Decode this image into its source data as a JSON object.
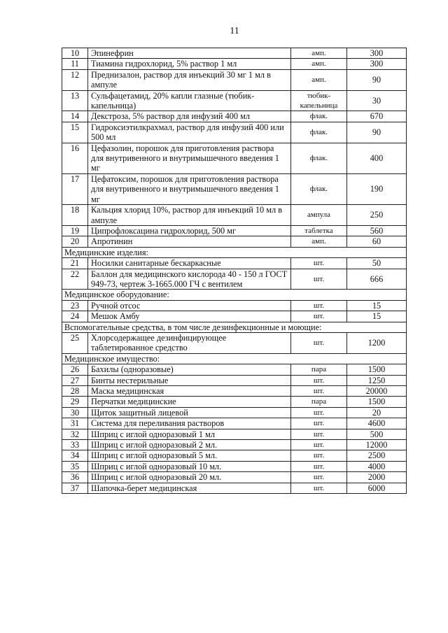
{
  "page_number": "11",
  "table": {
    "rows": [
      {
        "num": "10",
        "name": "Эпинефрин",
        "unit": "амп.",
        "qty": "300"
      },
      {
        "num": "11",
        "name": "Тиамина гидрохлорид, 5% раствор 1 мл",
        "unit": "амп.",
        "qty": "300"
      },
      {
        "num": "12",
        "name": "Преднизалон, раствор для инъекций 30 мг 1 мл в ампуле",
        "unit": "амп.",
        "qty": "90"
      },
      {
        "num": "13",
        "name": "Сульфацетамид, 20% капли глазные (тюбик-капельница)",
        "unit": "тюбик-капельница",
        "qty": "30"
      },
      {
        "num": "14",
        "name": "Декстроза, 5% раствор для инфузий 400 мл",
        "unit": "флак.",
        "qty": "670"
      },
      {
        "num": "15",
        "name": "Гидроксиэтилкрахмал, раствор для инфузий 400 или 500 мл",
        "unit": "флак.",
        "qty": "90"
      },
      {
        "num": "16",
        "name": "Цефазолин, порошок для приготовления раствора для внутривенного и внутримышечного введения 1 мг",
        "unit": "флак.",
        "qty": "400"
      },
      {
        "num": "17",
        "name": "Цефатоксим, порошок для приготовления раствора для внутривенного и внутримышечного введения 1 мг",
        "unit": "флак.",
        "qty": "190"
      },
      {
        "num": "18",
        "name": "Кальция хлорид 10%, раствор для инъекций 10 мл в ампуле",
        "unit": "ампула",
        "qty": "250"
      },
      {
        "num": "19",
        "name": "Ципрофлоксацина гидрохлорид, 500 мг",
        "unit": "таблетка",
        "qty": "560"
      },
      {
        "num": "20",
        "name": "Апротинин",
        "unit": "амп.",
        "qty": "60"
      },
      {
        "section": "Медицинские изделия:"
      },
      {
        "num": "21",
        "name": "Носилки санитарные бескаркасные",
        "unit": "шт.",
        "qty": "50"
      },
      {
        "num": "22",
        "name": "Баллон для медицинского кислорода 40 - 150 л ГОСТ 949-73, чертеж 3-1665.000 ГЧ с вентилем",
        "unit": "шт.",
        "qty": "666"
      },
      {
        "section": "Медицинское оборудование:"
      },
      {
        "num": "23",
        "name": "Ручной отсос",
        "unit": "шт.",
        "qty": "15"
      },
      {
        "num": "24",
        "name": "Мешок Амбу",
        "unit": "шт.",
        "qty": "15"
      },
      {
        "section": "Вспомогательные средства, в том числе дезинфекционные и моющие:"
      },
      {
        "num": "25",
        "name": "Хлорсодержащее дезинфицирующее таблетированное средство",
        "unit": "шт.",
        "qty": "1200"
      },
      {
        "section": "Медицинское имущество:"
      },
      {
        "num": "26",
        "name": "Бахилы (одноразовые)",
        "unit": "пара",
        "qty": "1500"
      },
      {
        "num": "27",
        "name": "Бинты нестерильные",
        "unit": "шт.",
        "qty": "1250"
      },
      {
        "num": "28",
        "name": "Маска медицинская",
        "unit": "шт.",
        "qty": "20000"
      },
      {
        "num": "29",
        "name": "Перчатки медицинские",
        "unit": "пара",
        "qty": "1500"
      },
      {
        "num": "30",
        "name": "Щиток защитный лицевой",
        "unit": "шт.",
        "qty": "20"
      },
      {
        "num": "31",
        "name": "Система для переливания растворов",
        "unit": "шт.",
        "qty": "4600"
      },
      {
        "num": "32",
        "name": "Шприц с иглой одноразовый 1 мл",
        "unit": "шт.",
        "qty": "500"
      },
      {
        "num": "33",
        "name": "Шприц с иглой одноразовый 2 мл.",
        "unit": "шт.",
        "qty": "12000"
      },
      {
        "num": "34",
        "name": "Шприц с иглой одноразовый 5 мл.",
        "unit": "шт.",
        "qty": "2500"
      },
      {
        "num": "35",
        "name": "Шприц с иглой одноразовый 10 мл.",
        "unit": "шт.",
        "qty": "4000"
      },
      {
        "num": "36",
        "name": "Шприц с иглой одноразовый 20 мл.",
        "unit": "шт.",
        "qty": "2000"
      },
      {
        "num": "37",
        "name": "Шапочка-берет медицинская",
        "unit": "шт.",
        "qty": "6000"
      }
    ]
  }
}
